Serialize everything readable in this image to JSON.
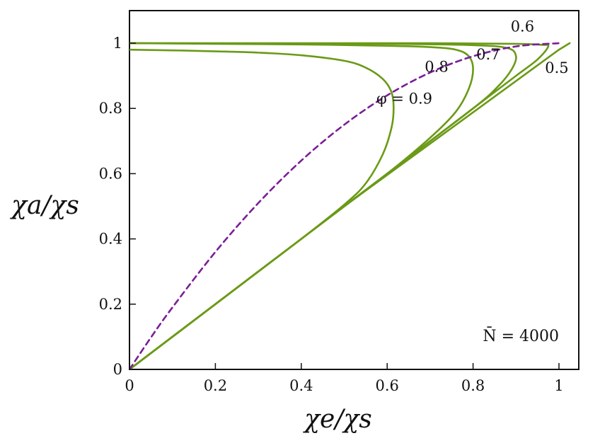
{
  "chart_data": {
    "type": "line",
    "title": "",
    "xlabel": "χe/χs",
    "ylabel": "χa/χs",
    "xlim": [
      0,
      1.05
    ],
    "ylim": [
      0,
      1.1
    ],
    "x_ticks": [
      0,
      0.2,
      0.4,
      0.6,
      0.8,
      1
    ],
    "x_tick_labels": [
      "0",
      "0.2",
      "0.4",
      "0.6",
      "0.8",
      "1"
    ],
    "y_ticks": [
      0,
      0.2,
      0.4,
      0.6,
      0.8,
      1
    ],
    "y_tick_labels": [
      "0",
      "0.2",
      "0.4",
      "0.6",
      "0.8",
      "1"
    ],
    "grid": false,
    "annotation": "N̄ = 4000",
    "series": [
      {
        "name": "φ = 0.9",
        "label": "φ = 0.9",
        "style": "solid",
        "color": "#6a9a16",
        "x": [
          0,
          0.1,
          0.2,
          0.3,
          0.4,
          0.5,
          0.55,
          0.59,
          0.61,
          0.615,
          0.61,
          0.59,
          0.55,
          0.5,
          0.4,
          0.3,
          0.2,
          0.1,
          0
        ],
        "y": [
          0,
          0.1,
          0.2,
          0.3,
          0.4,
          0.505,
          0.57,
          0.66,
          0.74,
          0.8,
          0.85,
          0.89,
          0.925,
          0.946,
          0.963,
          0.971,
          0.975,
          0.978,
          0.98
        ]
      },
      {
        "name": "0.8",
        "label": "0.8",
        "style": "solid",
        "color": "#6a9a16",
        "x": [
          0,
          0.2,
          0.4,
          0.6,
          0.7,
          0.76,
          0.79,
          0.8,
          0.79,
          0.76,
          0.7,
          0.6,
          0.4,
          0.2,
          0
        ],
        "y": [
          0,
          0.2,
          0.4,
          0.6,
          0.71,
          0.79,
          0.86,
          0.92,
          0.96,
          0.98,
          0.988,
          0.992,
          0.996,
          0.998,
          1.0
        ]
      },
      {
        "name": "0.7",
        "label": "0.7",
        "style": "solid",
        "color": "#6a9a16",
        "x": [
          0,
          0.2,
          0.4,
          0.6,
          0.8,
          0.86,
          0.89,
          0.9,
          0.88,
          0.8,
          0.6,
          0.3,
          0
        ],
        "y": [
          0,
          0.2,
          0.4,
          0.6,
          0.8,
          0.87,
          0.92,
          0.96,
          0.985,
          0.994,
          0.998,
          0.999,
          1.0
        ]
      },
      {
        "name": "0.6",
        "label": "0.6",
        "style": "solid",
        "color": "#6a9a16",
        "x": [
          0,
          0.2,
          0.4,
          0.6,
          0.8,
          0.9,
          0.95,
          0.975,
          0.96,
          0.9,
          0.7,
          0.4,
          0
        ],
        "y": [
          0,
          0.2,
          0.4,
          0.6,
          0.8,
          0.9,
          0.95,
          0.99,
          0.995,
          0.998,
          1.0,
          1.0,
          1.0
        ]
      },
      {
        "name": "0.5",
        "label": "0.5",
        "style": "solid",
        "color": "#6a9a16",
        "x": [
          0,
          0.5,
          1.0,
          1.025
        ],
        "y": [
          0,
          0.5,
          0.98,
          1.0
        ]
      },
      {
        "name": "spinodal",
        "label": "",
        "style": "dashed",
        "color": "#7a1f96",
        "x": [
          0,
          0.05,
          0.1,
          0.2,
          0.3,
          0.4,
          0.5,
          0.6,
          0.7,
          0.8,
          0.9,
          1.0
        ],
        "y": [
          0,
          0.098,
          0.19,
          0.36,
          0.51,
          0.64,
          0.75,
          0.84,
          0.91,
          0.96,
          0.99,
          1.0
        ]
      }
    ],
    "curve_labels": [
      {
        "text": "φ = 0.9",
        "x": 0.64,
        "y": 0.815
      },
      {
        "text": "0.8",
        "x": 0.715,
        "y": 0.912
      },
      {
        "text": "0.7",
        "x": 0.835,
        "y": 0.95
      },
      {
        "text": "0.6",
        "x": 0.915,
        "y": 1.036
      },
      {
        "text": "0.5",
        "x": 0.995,
        "y": 0.909
      }
    ],
    "annotation_pos": {
      "x": 1.0,
      "y": 0.087
    }
  }
}
